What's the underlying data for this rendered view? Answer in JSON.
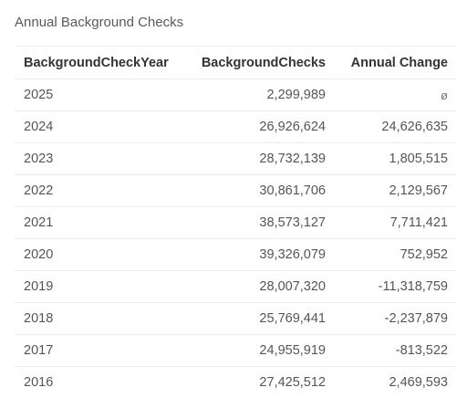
{
  "panel": {
    "title": "Annual Background Checks"
  },
  "table": {
    "columns": [
      "BackgroundCheckYear",
      "BackgroundChecks",
      "Annual Change"
    ],
    "rows": [
      {
        "year": "2025",
        "checks": "2,299,989",
        "change": "ø"
      },
      {
        "year": "2024",
        "checks": "26,926,624",
        "change": "24,626,635"
      },
      {
        "year": "2023",
        "checks": "28,732,139",
        "change": "1,805,515"
      },
      {
        "year": "2022",
        "checks": "30,861,706",
        "change": "2,129,567"
      },
      {
        "year": "2021",
        "checks": "38,573,127",
        "change": "7,711,421"
      },
      {
        "year": "2020",
        "checks": "39,326,079",
        "change": "752,952"
      },
      {
        "year": "2019",
        "checks": "28,007,320",
        "change": "-11,318,759"
      },
      {
        "year": "2018",
        "checks": "25,769,441",
        "change": "-2,237,879"
      },
      {
        "year": "2017",
        "checks": "24,955,919",
        "change": "-813,522"
      },
      {
        "year": "2016",
        "checks": "27,425,512",
        "change": "2,469,593"
      }
    ]
  }
}
